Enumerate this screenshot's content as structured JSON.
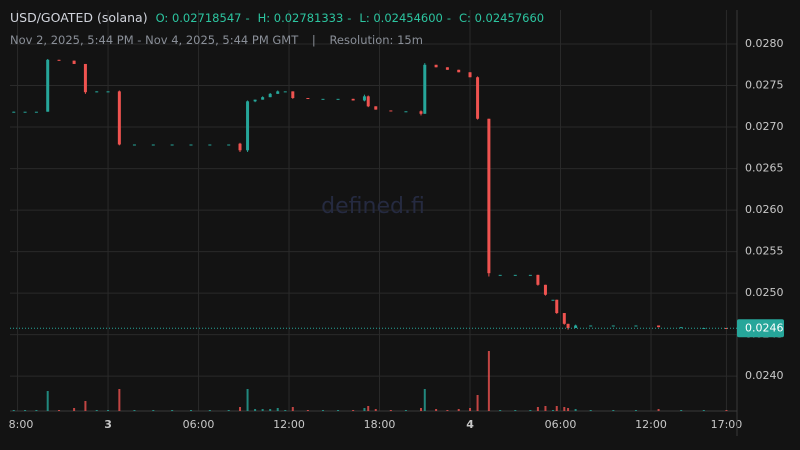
{
  "chart_data": {
    "type": "candlestick",
    "title": "USD/GOATED (solana)",
    "ohlc": [
      "O: 0.02718547",
      "H: 0.02781333",
      "L: 0.02454600",
      "C: 0.02457660"
    ],
    "subtitle": "Nov 2, 2025, 5:44 PM - Nov 4, 2025, 5:44 PM GMT",
    "separator": "|",
    "resolution": "Resolution: 15m",
    "watermark": "defined.fi",
    "up_color": "#26a69a",
    "down_color": "#ef5350",
    "grid": true,
    "xlim": [
      "2025-11-02T17:30",
      "2025-11-04T17:42"
    ],
    "xticks": [
      {
        "value": "2025-11-02T18:00",
        "label": "8:00"
      },
      {
        "value": "2025-11-03T00:00",
        "label": "3"
      },
      {
        "value": "2025-11-03T06:00",
        "label": "06:00"
      },
      {
        "value": "2025-11-03T12:00",
        "label": "12:00"
      },
      {
        "value": "2025-11-03T18:00",
        "label": "18:00"
      },
      {
        "value": "2025-11-04T00:00",
        "label": "4"
      },
      {
        "value": "2025-11-04T06:00",
        "label": "06:00"
      },
      {
        "value": "2025-11-04T12:00",
        "label": "12:00"
      },
      {
        "value": "2025-11-04T17:00",
        "label": "17:00"
      }
    ],
    "ylim": [
      0.02358,
      0.02841
    ],
    "yticks": [
      {
        "value": 0.024,
        "label": "0.0240"
      },
      {
        "value": 0.0245,
        "label": "0.0245"
      },
      {
        "value": 0.025,
        "label": "0.0250"
      },
      {
        "value": 0.0255,
        "label": "0.0255"
      },
      {
        "value": 0.026,
        "label": "0.0260"
      },
      {
        "value": 0.0265,
        "label": "0.0265"
      },
      {
        "value": 0.027,
        "label": "0.0270"
      },
      {
        "value": 0.0275,
        "label": "0.0275"
      },
      {
        "value": 0.028,
        "label": "0.0280"
      }
    ],
    "last_price": {
      "value": 0.0245766,
      "label": "0.0246"
    },
    "volume_lim": [
      0,
      100
    ],
    "x": [
      "2025-11-02T17:45",
      "2025-11-02T18:30",
      "2025-11-02T19:15",
      "2025-11-02T20:00",
      "2025-11-02T20:45",
      "2025-11-02T21:45",
      "2025-11-02T22:30",
      "2025-11-02T23:15",
      "2025-11-03T00:00",
      "2025-11-03T00:45",
      "2025-11-03T01:45",
      "2025-11-03T03:00",
      "2025-11-03T04:15",
      "2025-11-03T05:30",
      "2025-11-03T06:45",
      "2025-11-03T08:00",
      "2025-11-03T08:45",
      "2025-11-03T09:15",
      "2025-11-03T09:45",
      "2025-11-03T10:15",
      "2025-11-03T10:45",
      "2025-11-03T11:15",
      "2025-11-03T11:45",
      "2025-11-03T12:15",
      "2025-11-03T13:15",
      "2025-11-03T14:15",
      "2025-11-03T15:15",
      "2025-11-03T16:15",
      "2025-11-03T17:00",
      "2025-11-03T17:15",
      "2025-11-03T17:45",
      "2025-11-03T18:45",
      "2025-11-03T19:45",
      "2025-11-03T20:45",
      "2025-11-03T21:00",
      "2025-11-03T21:45",
      "2025-11-03T22:30",
      "2025-11-03T23:15",
      "2025-11-04T00:00",
      "2025-11-04T00:30",
      "2025-11-04T01:15",
      "2025-11-04T02:00",
      "2025-11-04T03:00",
      "2025-11-04T04:00",
      "2025-11-04T04:30",
      "2025-11-04T05:00",
      "2025-11-04T05:30",
      "2025-11-04T05:45",
      "2025-11-04T06:15",
      "2025-11-04T06:30",
      "2025-11-04T07:00",
      "2025-11-04T08:00",
      "2025-11-04T09:30",
      "2025-11-04T11:00",
      "2025-11-04T12:30",
      "2025-11-04T14:00",
      "2025-11-04T15:30",
      "2025-11-04T17:00"
    ],
    "open": [
      0.027185,
      0.027185,
      0.027185,
      0.027185,
      0.02781,
      0.0278,
      0.02776,
      0.02742,
      0.02743,
      0.02743,
      0.02679,
      0.02679,
      0.02679,
      0.02679,
      0.02679,
      0.02679,
      0.0268,
      0.02672,
      0.02731,
      0.02733,
      0.02736,
      0.0274,
      0.02743,
      0.02743,
      0.02735,
      0.02734,
      0.02734,
      0.02734,
      0.02732,
      0.02737,
      0.02725,
      0.0272,
      0.02719,
      0.02719,
      0.02716,
      0.02775,
      0.02772,
      0.02769,
      0.02766,
      0.0276,
      0.0271,
      0.02522,
      0.02522,
      0.02522,
      0.02522,
      0.0251,
      0.02492,
      0.02492,
      0.02476,
      0.02463,
      0.02458,
      0.02461,
      0.02461,
      0.02461,
      0.02461,
      0.02459,
      0.02458,
      0.02458
    ],
    "high": [
      0.027185,
      0.027185,
      0.027185,
      0.02782,
      0.02781,
      0.0278,
      0.02776,
      0.02743,
      0.02743,
      0.02744,
      0.02679,
      0.02679,
      0.02679,
      0.02679,
      0.02679,
      0.02679,
      0.02681,
      0.02732,
      0.02733,
      0.02737,
      0.02741,
      0.02744,
      0.02743,
      0.02743,
      0.02735,
      0.02734,
      0.02734,
      0.02734,
      0.02739,
      0.02738,
      0.02725,
      0.0272,
      0.02719,
      0.0272,
      0.02777,
      0.02775,
      0.02772,
      0.02769,
      0.02766,
      0.02761,
      0.0271,
      0.02522,
      0.02522,
      0.02522,
      0.02522,
      0.0251,
      0.02492,
      0.02492,
      0.02476,
      0.02463,
      0.02462,
      0.02461,
      0.02461,
      0.02461,
      0.02461,
      0.02459,
      0.02458,
      0.02458
    ],
    "low": [
      0.02718,
      0.027185,
      0.027185,
      0.027185,
      0.0278,
      0.02776,
      0.0274,
      0.02742,
      0.02742,
      0.02678,
      0.02679,
      0.02679,
      0.02679,
      0.02679,
      0.02679,
      0.02679,
      0.0267,
      0.0267,
      0.0273,
      0.02733,
      0.02736,
      0.0274,
      0.02743,
      0.02734,
      0.02734,
      0.02734,
      0.02734,
      0.02732,
      0.02731,
      0.02724,
      0.02721,
      0.02719,
      0.02719,
      0.02714,
      0.02716,
      0.02772,
      0.02769,
      0.02766,
      0.0276,
      0.02709,
      0.0252,
      0.02522,
      0.02522,
      0.02522,
      0.02509,
      0.02497,
      0.02492,
      0.02475,
      0.02462,
      0.02456,
      0.02458,
      0.02461,
      0.02461,
      0.02461,
      0.02459,
      0.02459,
      0.02458,
      0.02457
    ],
    "close": [
      0.027185,
      0.027185,
      0.027185,
      0.02781,
      0.0278,
      0.02776,
      0.02742,
      0.02743,
      0.02743,
      0.02679,
      0.02679,
      0.02679,
      0.02679,
      0.02679,
      0.02679,
      0.02679,
      0.02672,
      0.02731,
      0.02733,
      0.02736,
      0.0274,
      0.02743,
      0.02743,
      0.02735,
      0.02734,
      0.02734,
      0.02734,
      0.02732,
      0.02737,
      0.02725,
      0.02721,
      0.02719,
      0.02719,
      0.02716,
      0.02775,
      0.02772,
      0.02769,
      0.02766,
      0.0276,
      0.0271,
      0.02524,
      0.02522,
      0.02522,
      0.02522,
      0.0251,
      0.02498,
      0.02492,
      0.02476,
      0.02463,
      0.02458,
      0.02461,
      0.02461,
      0.02461,
      0.02461,
      0.02459,
      0.02459,
      0.02458,
      0.0245766
    ],
    "volume": [
      1,
      1,
      1,
      20,
      1,
      3,
      10,
      1,
      1,
      22,
      1,
      1,
      1,
      1,
      1,
      1,
      4,
      22,
      2,
      2,
      2,
      3,
      1,
      4,
      1,
      1,
      1,
      1,
      3,
      5,
      2,
      1,
      1,
      3,
      22,
      2,
      1,
      2,
      3,
      16,
      60,
      1,
      1,
      1,
      4,
      5,
      1,
      5,
      4,
      3,
      2,
      1,
      1,
      1,
      2,
      1,
      1,
      1
    ]
  }
}
